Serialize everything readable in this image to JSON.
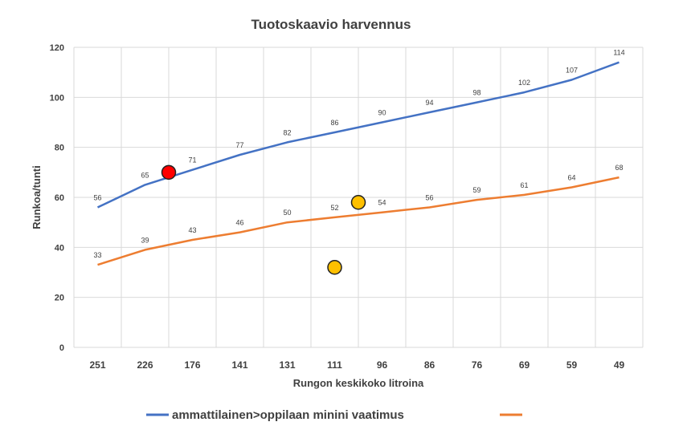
{
  "chart_data": {
    "type": "line",
    "title": "Tuotoskaavio harvennus",
    "xlabel": "Rungon keskikoko litroina",
    "ylabel": "Runkoa/tunti",
    "categories": [
      "251",
      "226",
      "176",
      "141",
      "131",
      "111",
      "96",
      "86",
      "76",
      "69",
      "59",
      "49"
    ],
    "ylim": [
      0,
      120
    ],
    "yticks": [
      "0",
      "20",
      "40",
      "60",
      "80",
      "100",
      "120"
    ],
    "grid": true,
    "legend_position": "bottom",
    "series": [
      {
        "name": "ammattilainen>oppilaan minini vaatimus",
        "color": "#4472c4",
        "values": [
          56,
          65,
          71,
          77,
          82,
          86,
          90,
          94,
          98,
          102,
          107,
          114
        ]
      },
      {
        "name": "",
        "color": "#ed7d31",
        "values": [
          33,
          39,
          43,
          46,
          50,
          52,
          54,
          56,
          59,
          61,
          64,
          68
        ]
      }
    ],
    "markers": [
      {
        "x_index": 1.5,
        "y": 70,
        "color": "#ff0000"
      },
      {
        "x_index": 5.5,
        "y": 58,
        "color": "#ffc000"
      },
      {
        "x_index": 5.0,
        "y": 32,
        "color": "#ffc000"
      }
    ]
  }
}
